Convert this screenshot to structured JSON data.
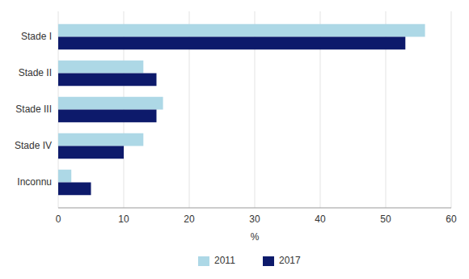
{
  "chart_data": {
    "type": "bar",
    "orientation": "horizontal",
    "categories": [
      "Inconnu",
      "Stade IV",
      "Stade III",
      "Stade II",
      "Stade I"
    ],
    "series": [
      {
        "name": "2011",
        "color": "#add8e6",
        "values": [
          2,
          13,
          16,
          13,
          56
        ]
      },
      {
        "name": "2017",
        "color": "#0d1a6b",
        "values": [
          5,
          10,
          15,
          15,
          53
        ]
      }
    ],
    "xlabel": "%",
    "xlim": [
      0,
      60
    ],
    "xticks": [
      0,
      10,
      20,
      30,
      40,
      50,
      60
    ],
    "grid": true,
    "legend": "bottom"
  }
}
